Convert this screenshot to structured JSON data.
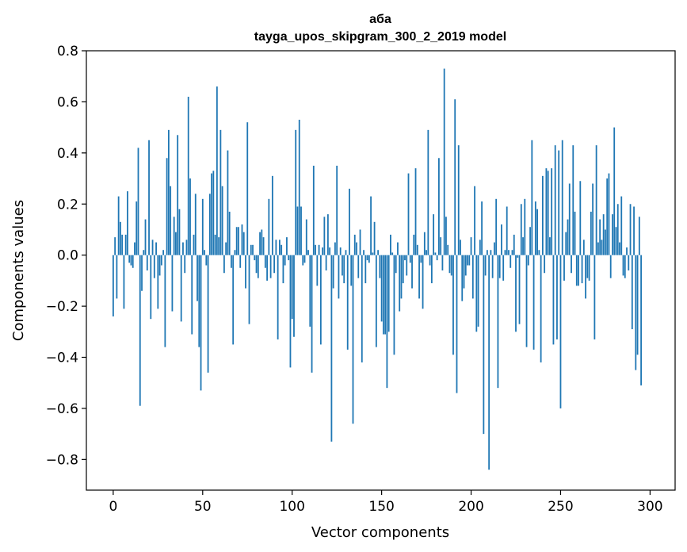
{
  "chart_data": {
    "type": "bar",
    "title_line1": "аба",
    "title_line2": "tayga_upos_skipgram_300_2_2019 model",
    "xlabel": "Vector components",
    "ylabel": "Components values",
    "xlim": [
      -15,
      314
    ],
    "ylim": [
      -0.92,
      0.8
    ],
    "xticks": [
      0,
      50,
      100,
      150,
      200,
      250,
      300
    ],
    "xtick_labels": [
      "0",
      "50",
      "100",
      "150",
      "200",
      "250",
      "300"
    ],
    "yticks": [
      -0.8,
      -0.6,
      -0.4,
      -0.2,
      0.0,
      0.2,
      0.4,
      0.6,
      0.8
    ],
    "ytick_labels": [
      "−0.8",
      "−0.6",
      "−0.4",
      "−0.2",
      "0.0",
      "0.2",
      "0.4",
      "0.6",
      "0.8"
    ],
    "bar_color": "#1f77b4",
    "grid": false,
    "values": [
      -0.24,
      0.07,
      -0.17,
      0.23,
      0.13,
      0.08,
      -0.21,
      0.08,
      0.25,
      -0.03,
      -0.04,
      -0.05,
      0.05,
      0.21,
      0.42,
      -0.59,
      -0.14,
      0.02,
      0.14,
      -0.06,
      0.45,
      -0.25,
      0.06,
      -0.09,
      0.05,
      -0.21,
      -0.08,
      -0.04,
      0.02,
      -0.36,
      0.38,
      0.49,
      0.27,
      -0.22,
      0.15,
      0.09,
      0.47,
      0.18,
      -0.26,
      0.05,
      -0.07,
      0.06,
      0.62,
      0.3,
      -0.31,
      0.08,
      0.24,
      -0.18,
      -0.36,
      -0.53,
      0.22,
      0.02,
      -0.04,
      -0.46,
      0.24,
      0.32,
      0.33,
      0.08,
      0.66,
      0.07,
      0.49,
      0.27,
      -0.07,
      0.05,
      0.41,
      0.17,
      -0.05,
      -0.35,
      0.02,
      0.11,
      0.11,
      -0.05,
      0.12,
      0.09,
      -0.13,
      0.52,
      -0.27,
      0.04,
      0.04,
      -0.02,
      -0.07,
      -0.09,
      0.09,
      0.1,
      0.07,
      -0.05,
      -0.1,
      0.22,
      -0.09,
      0.31,
      -0.07,
      0.06,
      -0.33,
      0.06,
      0.04,
      -0.11,
      -0.04,
      0.07,
      -0.02,
      -0.44,
      -0.25,
      -0.32,
      0.49,
      0.19,
      0.53,
      0.19,
      -0.04,
      -0.03,
      0.14,
      0.02,
      -0.28,
      -0.46,
      0.35,
      0.04,
      -0.12,
      0.04,
      -0.35,
      0.03,
      0.15,
      -0.06,
      0.16,
      0.03,
      -0.73,
      -0.13,
      0.05,
      0.35,
      -0.17,
      0.03,
      -0.08,
      -0.11,
      0.02,
      -0.37,
      0.26,
      -0.12,
      -0.66,
      0.08,
      0.05,
      -0.09,
      0.1,
      -0.42,
      0.02,
      -0.11,
      -0.02,
      -0.03,
      0.23,
      0.01,
      0.13,
      -0.36,
      0.02,
      -0.09,
      -0.26,
      -0.31,
      -0.31,
      -0.52,
      -0.3,
      0.08,
      0.01,
      -0.39,
      -0.07,
      0.05,
      -0.22,
      -0.17,
      -0.11,
      -0.02,
      -0.08,
      0.32,
      -0.03,
      -0.13,
      0.08,
      0.34,
      0.04,
      -0.17,
      -0.03,
      -0.21,
      0.09,
      0.02,
      0.49,
      -0.04,
      -0.11,
      0.16,
      0.01,
      -0.02,
      0.38,
      0.07,
      -0.06,
      0.73,
      0.15,
      0.04,
      -0.07,
      -0.08,
      -0.39,
      0.61,
      -0.54,
      0.43,
      0.06,
      -0.18,
      -0.13,
      -0.08,
      -0.04,
      -0.04,
      0.07,
      -0.17,
      0.27,
      -0.3,
      -0.28,
      0.06,
      0.21,
      -0.7,
      -0.08,
      0.02,
      -0.84,
      0.02,
      -0.09,
      0.05,
      0.22,
      -0.52,
      -0.09,
      0.12,
      -0.1,
      0.02,
      0.19,
      0.02,
      -0.05,
      0.02,
      0.08,
      -0.3,
      -0.01,
      -0.27,
      0.2,
      0.07,
      0.22,
      -0.36,
      -0.04,
      0.11,
      0.45,
      -0.37,
      0.21,
      0.18,
      0.02,
      -0.42,
      0.31,
      -0.07,
      0.34,
      0.33,
      0.07,
      0.34,
      -0.35,
      0.43,
      -0.33,
      0.41,
      -0.6,
      0.45,
      -0.1,
      0.09,
      0.14,
      0.28,
      -0.07,
      0.43,
      0.17,
      -0.12,
      -0.12,
      0.29,
      -0.11,
      0.06,
      -0.17,
      -0.09,
      -0.1,
      0.17,
      0.28,
      -0.33,
      0.43,
      0.05,
      0.14,
      0.06,
      0.16,
      0.1,
      0.3,
      0.32,
      -0.09,
      0.16,
      0.5,
      0.11,
      0.2,
      0.05,
      0.23,
      -0.08,
      -0.09,
      0.03,
      -0.06,
      0.2,
      -0.29,
      0.19,
      -0.45,
      -0.39,
      0.15,
      -0.51
    ]
  }
}
